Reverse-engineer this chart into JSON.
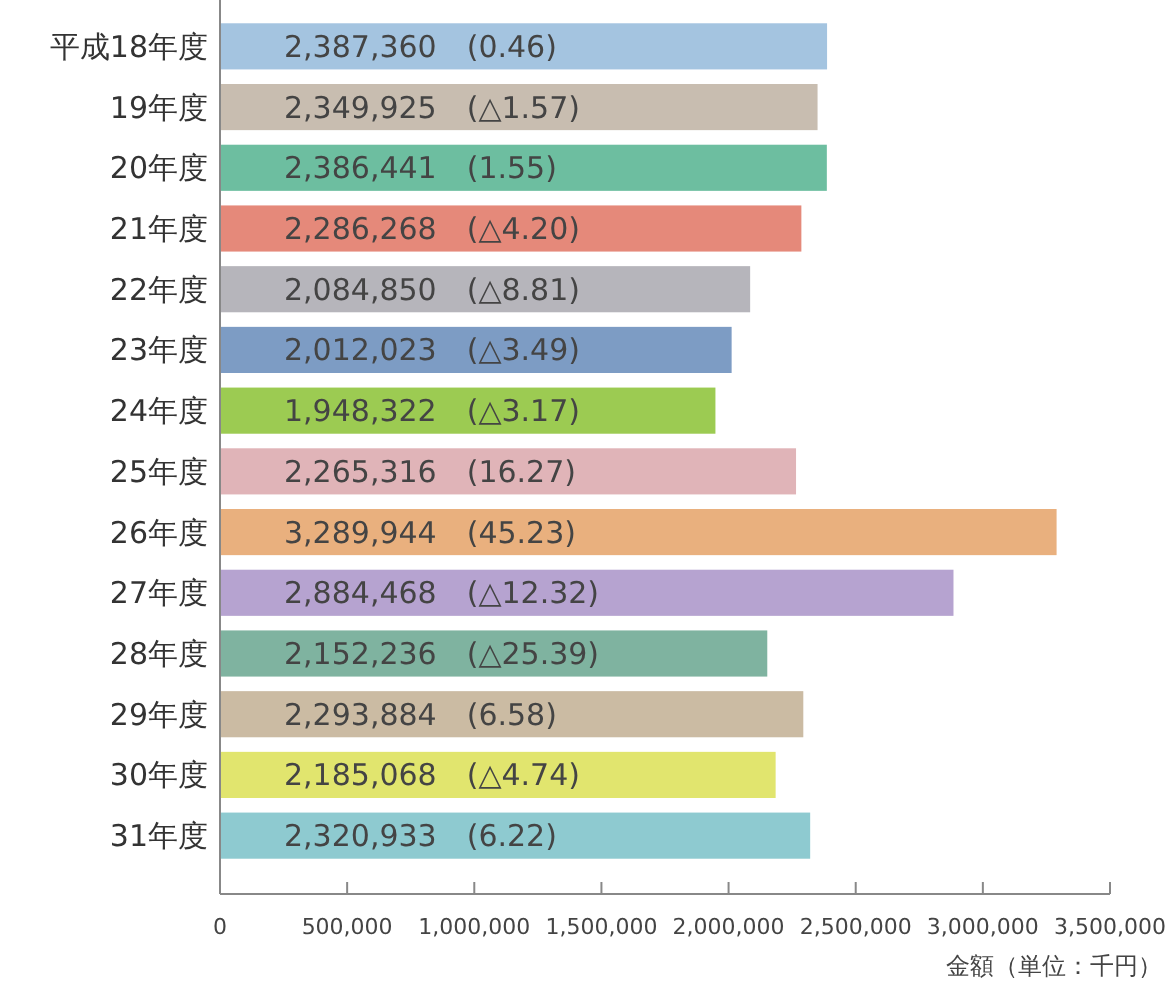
{
  "chart_data": {
    "type": "bar",
    "orientation": "horizontal",
    "xlabel": "金額（単位：千円）",
    "categories": [
      "平成18年度",
      "19年度",
      "20年度",
      "21年度",
      "22年度",
      "23年度",
      "24年度",
      "25年度",
      "26年度",
      "27年度",
      "28年度",
      "29年度",
      "30年度",
      "31年度"
    ],
    "values": [
      2387360,
      2349925,
      2386441,
      2286268,
      2084850,
      2012023,
      1948322,
      2265316,
      3289944,
      2884468,
      2152236,
      2293884,
      2185068,
      2320933
    ],
    "colors": [
      "#a4c4e0",
      "#c8bdb0",
      "#6dbea0",
      "#e5897a",
      "#b6b5bb",
      "#7d9cc4",
      "#9ccb52",
      "#e0b4b8",
      "#e9b07e",
      "#b6a3d0",
      "#7fb3a0",
      "#cbbba3",
      "#e1e56e",
      "#8ecad0"
    ],
    "value_labels": [
      "2,387,360　(0.46)",
      "2,349,925　(△1.57)",
      "2,386,441　(1.55)",
      "2,286,268　(△4.20)",
      "2,084,850　(△8.81)",
      "2,012,023　(△3.49)",
      "1,948,322　(△3.17)",
      "2,265,316　(16.27)",
      "3,289,944　(45.23)",
      "2,884,468　(△12.32)",
      "2,152,236　(△25.39)",
      "2,293,884　(6.58)",
      "2,185,068　(△4.74)",
      "2,320,933　(6.22)"
    ],
    "xlim": [
      0,
      3500000
    ],
    "xticks": [
      0,
      {
        "value": 500000,
        "label": "500,000"
      },
      {
        "value": 1000000,
        "label": "1,000,000"
      },
      {
        "value": 1500000,
        "label": "1,500,000"
      },
      {
        "value": 2000000,
        "label": "2,000,000"
      },
      {
        "value": 2500000,
        "label": "2,500,000"
      },
      {
        "value": 3000000,
        "label": "3,000,000"
      },
      {
        "value": 3500000,
        "label": "3,500,000"
      }
    ],
    "grid": false
  }
}
